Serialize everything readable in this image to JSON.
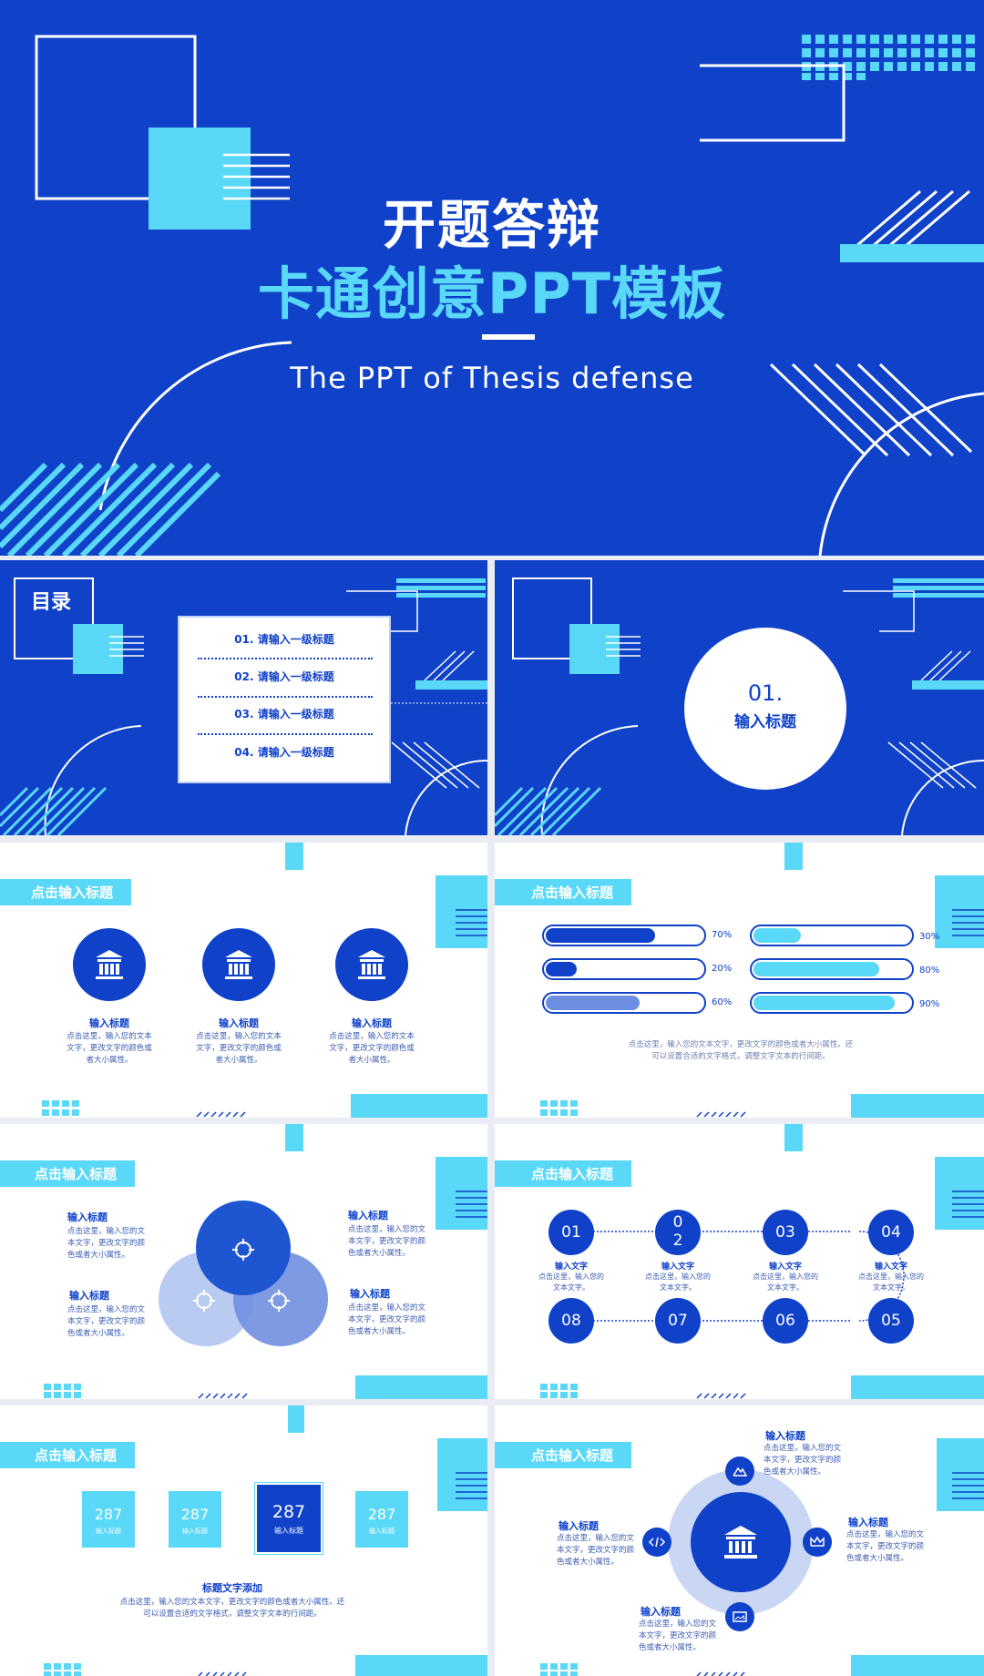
{
  "colors": {
    "primary": "#0f41c9",
    "accent": "#5ad8f7",
    "white": "#ffffff",
    "light": "#c9d7f4"
  },
  "cover": {
    "title_main": "开题答辩",
    "title_sub": "卡通创意PPT模板",
    "subtitle_en": "The PPT of Thesis defense"
  },
  "toc": {
    "heading": "目录",
    "items": [
      "01.  请输入一级标题",
      "02.  请输入一级标题",
      "03.  请输入一级标题",
      "04.  请输入一级标题"
    ]
  },
  "section": {
    "number": "01.",
    "label": "输入标题"
  },
  "slide_tag": "点击输入标题",
  "icons_slide": {
    "icon": "bank-icon",
    "items": [
      {
        "title": "输入标题",
        "body": "点击这里，输入您的文本文字，更改文字的颜色或者大小属性。"
      },
      {
        "title": "输入标题",
        "body": "点击这里，输入您的文本文字，更改文字的颜色或者大小属性。"
      },
      {
        "title": "输入标题",
        "body": "点击这里，输入您的文本文字，更改文字的颜色或者大小属性。"
      }
    ]
  },
  "progress_slide": {
    "bars": [
      {
        "label": "70%",
        "value": 0.7,
        "color": "#0f41c9"
      },
      {
        "label": "20%",
        "value": 0.2,
        "color": "#0f41c9"
      },
      {
        "label": "60%",
        "value": 0.6,
        "color": "#6b8ee0"
      },
      {
        "label": "30%",
        "value": 0.3,
        "color": "#5ad8f7"
      },
      {
        "label": "80%",
        "value": 0.8,
        "color": "#5ad8f7"
      },
      {
        "label": "90%",
        "value": 0.9,
        "color": "#5ad8f7"
      }
    ],
    "caption_1": "点击这里，输入您的文本文字，更改文字的颜色或者大小属性。还",
    "caption_2": "可以设置合适的文字格式，调整文字文本的行间距。"
  },
  "venn_slide": {
    "icon": "target-icon",
    "items": [
      {
        "title": "输入标题",
        "body": "点击这里，输入您的文本文字，更改文字的颜色或者大小属性。"
      },
      {
        "title": "输入标题",
        "body": "点击这里，输入您的文本文字，更改文字的颜色或者大小属性。"
      },
      {
        "title": "输入标题",
        "body": "点击这里，输入您的文本文字，更改文字的颜色或者大小属性。"
      },
      {
        "title": "输入标题",
        "body": "点击这里，输入您的文本文字，更改文字的颜色或者大小属性。"
      }
    ]
  },
  "steps_slide": {
    "top": [
      "01",
      "0\n2",
      "03",
      "04"
    ],
    "bottom": [
      "08",
      "07",
      "06",
      "05"
    ],
    "step_title": "输入文字",
    "step_body": "点击这里，输入您的文本文字。"
  },
  "cards_slide": {
    "cards": [
      {
        "value": "287",
        "label": "输入标题"
      },
      {
        "value": "287",
        "label": "输入标题"
      },
      {
        "value": "287",
        "label": "输入标题"
      },
      {
        "value": "287",
        "label": "输入标题"
      }
    ],
    "title": "标题文字添加",
    "body_1": "点击这里，输入您的文本文字，更改文字的颜色或者大小属性。还",
    "body_2": "可以设置合适的文字格式，调整文字文本的行间距。"
  },
  "hub_slide": {
    "center_icon": "bank-icon",
    "orbit_icons": [
      "mountain-icon",
      "crown-icon",
      "image-icon",
      "code-icon"
    ],
    "items": [
      {
        "title": "输入标题",
        "body": "点击这里，输入您的文本文字，更改文字的颜色或者大小属性。"
      },
      {
        "title": "输入标题",
        "body": "点击这里，输入您的文本文字，更改文字的颜色或者大小属性。"
      },
      {
        "title": "输入标题",
        "body": "点击这里，输入您的文本文字，更改文字的颜色或者大小属性。"
      },
      {
        "title": "输入标题",
        "body": "点击这里，输入您的文本文字，更改文字的颜色或者大小属性。"
      }
    ]
  }
}
